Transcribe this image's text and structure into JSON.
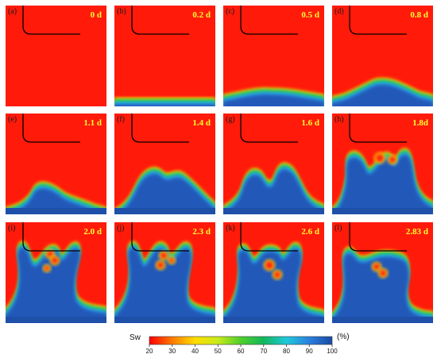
{
  "panels": [
    {
      "label": "(a)",
      "time": "0 d",
      "front": 0,
      "fingers": []
    },
    {
      "label": "(b)",
      "time": "0.2 d",
      "front": 0.12,
      "fingers": []
    },
    {
      "label": "(c)",
      "time": "0.5 d",
      "front": 0.22,
      "fingers": []
    },
    {
      "label": "(d)",
      "time": "0.8 d",
      "front": 0.28,
      "fingers": []
    },
    {
      "label": "(e)",
      "time": "1.1 d",
      "front": 0.32,
      "fingers": []
    },
    {
      "label": "(f)",
      "time": "1.4 d",
      "front": 0.38,
      "fingers": []
    },
    {
      "label": "(g)",
      "time": "1.6 d",
      "front": 0.45,
      "fingers": []
    },
    {
      "label": "(h)",
      "time": "1.8d",
      "front": 0.5,
      "fingers": []
    },
    {
      "label": "(i)",
      "time": "2.0 d",
      "front": 0.6,
      "fingers": []
    },
    {
      "label": "(j)",
      "time": "2.3 d",
      "front": 0.65,
      "fingers": []
    },
    {
      "label": "(k)",
      "time": "2.6 d",
      "front": 0.7,
      "fingers": []
    },
    {
      "label": "(l)",
      "time": "2.83 d",
      "front": 0.75,
      "fingers": []
    }
  ],
  "colorbar": {
    "label": "Sw",
    "unit": "(%)",
    "ticks": [
      "20",
      "30",
      "40",
      "50",
      "60",
      "70",
      "80",
      "90",
      "100"
    ],
    "colors": [
      "#ff0000",
      "#ff6a00",
      "#ffd200",
      "#cdea1a",
      "#5bd22a",
      "#10b45a",
      "#1ec8d8",
      "#2a86e0",
      "#1a4ea8"
    ]
  },
  "colors": {
    "oil": "#ff1a0a",
    "water": "#2456b8"
  }
}
